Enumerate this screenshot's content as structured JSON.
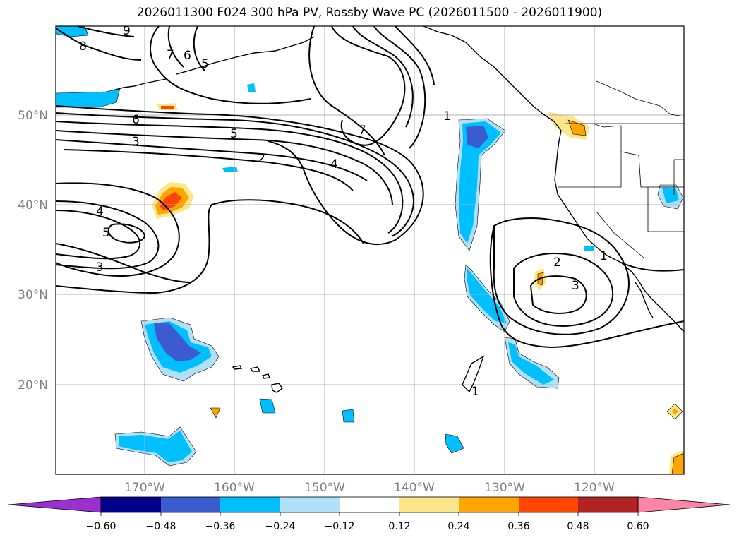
{
  "title": "2026011300 F024 300 hPa PV, Rossby Wave PC (2026011500 - 2026011900)",
  "lat_labels": [
    "50°N",
    "40°N",
    "30°N",
    "20°N"
  ],
  "lon_labels": [
    "170°W",
    "160°W",
    "150°W",
    "140°W",
    "130°W",
    "120°W"
  ],
  "colorbar": {
    "ticks": [
      "−0.60",
      "−0.48",
      "−0.36",
      "−0.24",
      "−0.12",
      "0.12",
      "0.24",
      "0.36",
      "0.48",
      "0.60"
    ],
    "colors": [
      "#9b30d0",
      "#00008b",
      "#3b5bd0",
      "#00bfff",
      "#b0e0f8",
      "#ffffff",
      "#fce68a",
      "#ffa500",
      "#ff4500",
      "#b22222",
      "#ff85a8"
    ]
  },
  "contour_labels": [
    "9",
    "8",
    "7",
    "6",
    "5",
    "6",
    "5",
    "3",
    "2",
    "4",
    "7",
    "1",
    "4",
    "5",
    "3",
    "2",
    "3",
    "1",
    "1"
  ],
  "colors": {
    "contour": "#000000",
    "grid": "#b0b0b0",
    "coast": "#000000"
  }
}
